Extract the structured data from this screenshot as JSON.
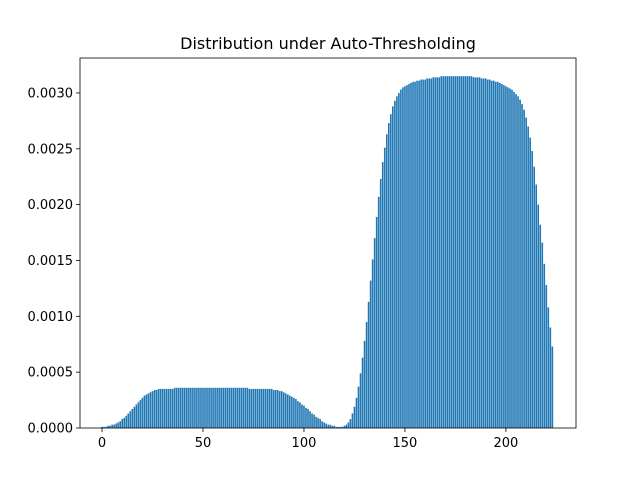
{
  "chart_data": {
    "type": "bar",
    "title": "Distribution under Auto-Thresholding",
    "color": "#1f77b4",
    "x": [
      0,
      1,
      2,
      3,
      4,
      5,
      6,
      7,
      8,
      9,
      10,
      11,
      12,
      13,
      14,
      15,
      16,
      17,
      18,
      19,
      20,
      21,
      22,
      23,
      24,
      25,
      26,
      27,
      28,
      29,
      30,
      31,
      32,
      33,
      34,
      35,
      36,
      37,
      38,
      39,
      40,
      41,
      42,
      43,
      44,
      45,
      46,
      47,
      48,
      49,
      50,
      51,
      52,
      53,
      54,
      55,
      56,
      57,
      58,
      59,
      60,
      61,
      62,
      63,
      64,
      65,
      66,
      67,
      68,
      69,
      70,
      71,
      72,
      73,
      74,
      75,
      76,
      77,
      78,
      79,
      80,
      81,
      82,
      83,
      84,
      85,
      86,
      87,
      88,
      89,
      90,
      91,
      92,
      93,
      94,
      95,
      96,
      97,
      98,
      99,
      100,
      101,
      102,
      103,
      104,
      105,
      106,
      107,
      108,
      109,
      110,
      111,
      112,
      113,
      114,
      115,
      116,
      117,
      118,
      119,
      120,
      121,
      122,
      123,
      124,
      125,
      126,
      127,
      128,
      129,
      130,
      131,
      132,
      133,
      134,
      135,
      136,
      137,
      138,
      139,
      140,
      141,
      142,
      143,
      144,
      145,
      146,
      147,
      148,
      149,
      150,
      151,
      152,
      153,
      154,
      155,
      156,
      157,
      158,
      159,
      160,
      161,
      162,
      163,
      164,
      165,
      166,
      167,
      168,
      169,
      170,
      171,
      172,
      173,
      174,
      175,
      176,
      177,
      178,
      179,
      180,
      181,
      182,
      183,
      184,
      185,
      186,
      187,
      188,
      189,
      190,
      191,
      192,
      193,
      194,
      195,
      196,
      197,
      198,
      199,
      200,
      201,
      202,
      203,
      204,
      205,
      206,
      207,
      208,
      209,
      210,
      211,
      212,
      213,
      214,
      215,
      216,
      217,
      218,
      219,
      220,
      221,
      222,
      223
    ],
    "values": [
      1e-05,
      1e-05,
      1e-05,
      2e-05,
      2e-05,
      3e-05,
      3e-05,
      4e-05,
      5e-05,
      6e-05,
      8e-05,
      9e-05,
      0.00011,
      0.00013,
      0.00015,
      0.00017,
      0.00019,
      0.00021,
      0.00023,
      0.00025,
      0.00027,
      0.00029,
      0.0003,
      0.00031,
      0.00032,
      0.00033,
      0.00034,
      0.00034,
      0.00035,
      0.00035,
      0.00035,
      0.00035,
      0.00035,
      0.00035,
      0.00035,
      0.00035,
      0.00036,
      0.00036,
      0.00036,
      0.00036,
      0.00036,
      0.00036,
      0.00036,
      0.00036,
      0.00036,
      0.00036,
      0.00036,
      0.00036,
      0.00036,
      0.00036,
      0.00036,
      0.00036,
      0.00036,
      0.00036,
      0.00036,
      0.00036,
      0.00036,
      0.00036,
      0.00036,
      0.00036,
      0.00036,
      0.00036,
      0.00036,
      0.00036,
      0.00036,
      0.00036,
      0.00036,
      0.00036,
      0.00036,
      0.00036,
      0.00036,
      0.00036,
      0.00036,
      0.00035,
      0.00035,
      0.00035,
      0.00035,
      0.00035,
      0.00035,
      0.00035,
      0.00035,
      0.00035,
      0.00035,
      0.00035,
      0.00035,
      0.00034,
      0.00034,
      0.00034,
      0.00033,
      0.00033,
      0.00032,
      0.00031,
      0.0003,
      0.00029,
      0.00028,
      0.00027,
      0.00026,
      0.00024,
      0.00023,
      0.00021,
      0.0002,
      0.00018,
      0.00017,
      0.00015,
      0.00013,
      0.00012,
      0.0001,
      9e-05,
      8e-05,
      6e-05,
      5e-05,
      4e-05,
      3e-05,
      3e-05,
      2e-05,
      2e-05,
      1e-05,
      1e-05,
      1e-05,
      1e-05,
      2e-05,
      3e-05,
      5e-05,
      8e-05,
      0.00013,
      0.00019,
      0.00027,
      0.00037,
      0.00049,
      0.00063,
      0.00078,
      0.00095,
      0.00113,
      0.00132,
      0.00151,
      0.0017,
      0.00189,
      0.00207,
      0.00223,
      0.00238,
      0.00251,
      0.00263,
      0.00273,
      0.00281,
      0.00288,
      0.00293,
      0.00297,
      0.003,
      0.00303,
      0.00305,
      0.00306,
      0.00307,
      0.00308,
      0.00309,
      0.0031,
      0.0031,
      0.00311,
      0.00311,
      0.00312,
      0.00312,
      0.00312,
      0.00313,
      0.00313,
      0.00313,
      0.00314,
      0.00314,
      0.00314,
      0.00314,
      0.00315,
      0.00315,
      0.00315,
      0.00315,
      0.00315,
      0.00315,
      0.00315,
      0.00315,
      0.00315,
      0.00315,
      0.00315,
      0.00315,
      0.00315,
      0.00315,
      0.00315,
      0.00315,
      0.00314,
      0.00314,
      0.00314,
      0.00314,
      0.00313,
      0.00313,
      0.00313,
      0.00312,
      0.00312,
      0.00311,
      0.00311,
      0.0031,
      0.0031,
      0.00309,
      0.00308,
      0.00307,
      0.00306,
      0.00305,
      0.00304,
      0.00303,
      0.00301,
      0.00299,
      0.00297,
      0.00294,
      0.0029,
      0.00285,
      0.00278,
      0.0027,
      0.0026,
      0.00248,
      0.00234,
      0.00218,
      0.002,
      0.00182,
      0.00166,
      0.00147,
      0.00128,
      0.00108,
      0.0009,
      0.00073
    ],
    "xlim": [
      -10.9,
      234.7
    ],
    "xticks": [
      0,
      50,
      100,
      150,
      200
    ],
    "ylim": [
      0,
      0.003313
    ],
    "yticks": [
      {
        "value": 0,
        "label": "0.0000"
      },
      {
        "value": 0.0005,
        "label": "0.0005"
      },
      {
        "value": 0.001,
        "label": "0.0010"
      },
      {
        "value": 0.0015,
        "label": "0.0015"
      },
      {
        "value": 0.002,
        "label": "0.0020"
      },
      {
        "value": 0.0025,
        "label": "0.0025"
      },
      {
        "value": 0.003,
        "label": "0.0030"
      }
    ]
  }
}
